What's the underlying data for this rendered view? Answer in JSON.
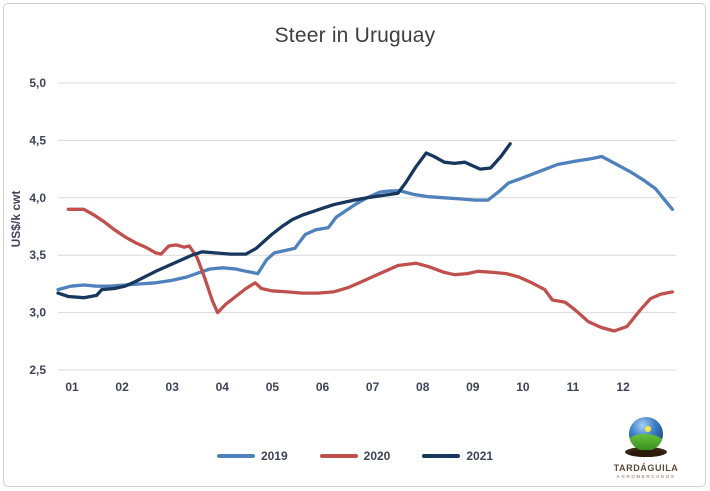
{
  "title": "Steer in Uruguay",
  "y_axis": {
    "label": "US$/k cwt",
    "ticks": [
      {
        "value": 5.0,
        "label": "5,0"
      },
      {
        "value": 4.5,
        "label": "4,5"
      },
      {
        "value": 4.0,
        "label": "4,0"
      },
      {
        "value": 3.5,
        "label": "3,5"
      },
      {
        "value": 3.0,
        "label": "3,0"
      },
      {
        "value": 2.5,
        "label": "2,5"
      }
    ]
  },
  "x_axis": {
    "categories": [
      "01",
      "02",
      "03",
      "04",
      "05",
      "06",
      "07",
      "08",
      "09",
      "10",
      "11",
      "12"
    ]
  },
  "logo": {
    "name": "TARDÁGUILA",
    "subtext": "AGROMERCADOS"
  },
  "chart_data": {
    "type": "line",
    "title": "Steer in Uruguay",
    "xlabel": "",
    "ylabel": "US$/k cwt",
    "ylim": [
      2.5,
      5.0
    ],
    "xlim_months": [
      1,
      13
    ],
    "grid": "horizontal",
    "grid_color": "#d9d9d9",
    "legend_position": "bottom",
    "x_unit": "month of year (weekly data points)",
    "categories": [
      "01",
      "02",
      "03",
      "04",
      "05",
      "06",
      "07",
      "08",
      "09",
      "10",
      "11",
      "12"
    ],
    "series": [
      {
        "name": "2019",
        "color": "#4F81BD",
        "points": [
          [
            1.0,
            3.2
          ],
          [
            1.25,
            3.23
          ],
          [
            1.5,
            3.24
          ],
          [
            1.75,
            3.23
          ],
          [
            2.0,
            3.23
          ],
          [
            2.3,
            3.24
          ],
          [
            2.6,
            3.25
          ],
          [
            2.9,
            3.26
          ],
          [
            3.2,
            3.28
          ],
          [
            3.5,
            3.31
          ],
          [
            3.75,
            3.35
          ],
          [
            3.95,
            3.38
          ],
          [
            4.2,
            3.39
          ],
          [
            4.45,
            3.38
          ],
          [
            4.65,
            3.36
          ],
          [
            4.88,
            3.34
          ],
          [
            5.05,
            3.46
          ],
          [
            5.2,
            3.52
          ],
          [
            5.4,
            3.54
          ],
          [
            5.6,
            3.56
          ],
          [
            5.8,
            3.68
          ],
          [
            6.0,
            3.72
          ],
          [
            6.25,
            3.74
          ],
          [
            6.4,
            3.83
          ],
          [
            6.6,
            3.89
          ],
          [
            6.8,
            3.95
          ],
          [
            7.0,
            4.0
          ],
          [
            7.25,
            4.05
          ],
          [
            7.45,
            4.06
          ],
          [
            7.65,
            4.06
          ],
          [
            7.9,
            4.03
          ],
          [
            8.2,
            4.01
          ],
          [
            8.5,
            4.0
          ],
          [
            8.8,
            3.99
          ],
          [
            9.1,
            3.98
          ],
          [
            9.35,
            3.98
          ],
          [
            9.55,
            4.05
          ],
          [
            9.75,
            4.13
          ],
          [
            10.0,
            4.17
          ],
          [
            10.35,
            4.23
          ],
          [
            10.7,
            4.29
          ],
          [
            11.05,
            4.32
          ],
          [
            11.35,
            4.34
          ],
          [
            11.56,
            4.36
          ],
          [
            11.85,
            4.29
          ],
          [
            12.1,
            4.23
          ],
          [
            12.35,
            4.16
          ],
          [
            12.6,
            4.08
          ],
          [
            12.8,
            3.97
          ],
          [
            12.93,
            3.9
          ]
        ]
      },
      {
        "name": "2020",
        "color": "#C0504D",
        "points": [
          [
            1.2,
            3.9
          ],
          [
            1.5,
            3.9
          ],
          [
            1.7,
            3.85
          ],
          [
            1.9,
            3.79
          ],
          [
            2.1,
            3.72
          ],
          [
            2.3,
            3.66
          ],
          [
            2.5,
            3.61
          ],
          [
            2.7,
            3.57
          ],
          [
            2.9,
            3.52
          ],
          [
            3.0,
            3.51
          ],
          [
            3.15,
            3.58
          ],
          [
            3.3,
            3.59
          ],
          [
            3.45,
            3.57
          ],
          [
            3.55,
            3.58
          ],
          [
            3.7,
            3.48
          ],
          [
            3.85,
            3.3
          ],
          [
            4.0,
            3.1
          ],
          [
            4.1,
            3.0
          ],
          [
            4.25,
            3.07
          ],
          [
            4.45,
            3.14
          ],
          [
            4.65,
            3.21
          ],
          [
            4.83,
            3.26
          ],
          [
            4.95,
            3.21
          ],
          [
            5.15,
            3.19
          ],
          [
            5.45,
            3.18
          ],
          [
            5.75,
            3.17
          ],
          [
            6.05,
            3.17
          ],
          [
            6.35,
            3.18
          ],
          [
            6.65,
            3.22
          ],
          [
            6.9,
            3.27
          ],
          [
            7.1,
            3.31
          ],
          [
            7.4,
            3.37
          ],
          [
            7.6,
            3.41
          ],
          [
            7.95,
            3.43
          ],
          [
            8.2,
            3.4
          ],
          [
            8.5,
            3.35
          ],
          [
            8.7,
            3.33
          ],
          [
            8.95,
            3.34
          ],
          [
            9.15,
            3.36
          ],
          [
            9.45,
            3.35
          ],
          [
            9.7,
            3.34
          ],
          [
            9.95,
            3.31
          ],
          [
            10.2,
            3.26
          ],
          [
            10.45,
            3.2
          ],
          [
            10.6,
            3.11
          ],
          [
            10.85,
            3.09
          ],
          [
            11.05,
            3.02
          ],
          [
            11.3,
            2.92
          ],
          [
            11.55,
            2.87
          ],
          [
            11.8,
            2.84
          ],
          [
            12.05,
            2.88
          ],
          [
            12.3,
            3.02
          ],
          [
            12.5,
            3.12
          ],
          [
            12.7,
            3.16
          ],
          [
            12.93,
            3.18
          ]
        ]
      },
      {
        "name": "2021",
        "color": "#17375D",
        "points": [
          [
            1.0,
            3.17
          ],
          [
            1.2,
            3.14
          ],
          [
            1.5,
            3.13
          ],
          [
            1.75,
            3.15
          ],
          [
            1.85,
            3.2
          ],
          [
            2.1,
            3.21
          ],
          [
            2.3,
            3.23
          ],
          [
            2.5,
            3.27
          ],
          [
            2.9,
            3.36
          ],
          [
            3.3,
            3.44
          ],
          [
            3.6,
            3.5
          ],
          [
            3.8,
            3.53
          ],
          [
            4.05,
            3.52
          ],
          [
            4.35,
            3.51
          ],
          [
            4.65,
            3.51
          ],
          [
            4.85,
            3.56
          ],
          [
            5.0,
            3.62
          ],
          [
            5.15,
            3.68
          ],
          [
            5.35,
            3.75
          ],
          [
            5.55,
            3.81
          ],
          [
            5.75,
            3.85
          ],
          [
            5.95,
            3.88
          ],
          [
            6.15,
            3.91
          ],
          [
            6.35,
            3.94
          ],
          [
            6.55,
            3.96
          ],
          [
            6.75,
            3.98
          ],
          [
            7.0,
            4.0
          ],
          [
            7.3,
            4.02
          ],
          [
            7.6,
            4.04
          ],
          [
            7.75,
            4.13
          ],
          [
            7.95,
            4.27
          ],
          [
            8.15,
            4.39
          ],
          [
            8.3,
            4.36
          ],
          [
            8.5,
            4.31
          ],
          [
            8.7,
            4.3
          ],
          [
            8.9,
            4.31
          ],
          [
            9.05,
            4.28
          ],
          [
            9.2,
            4.25
          ],
          [
            9.4,
            4.26
          ],
          [
            9.6,
            4.36
          ],
          [
            9.78,
            4.47
          ]
        ]
      }
    ]
  }
}
